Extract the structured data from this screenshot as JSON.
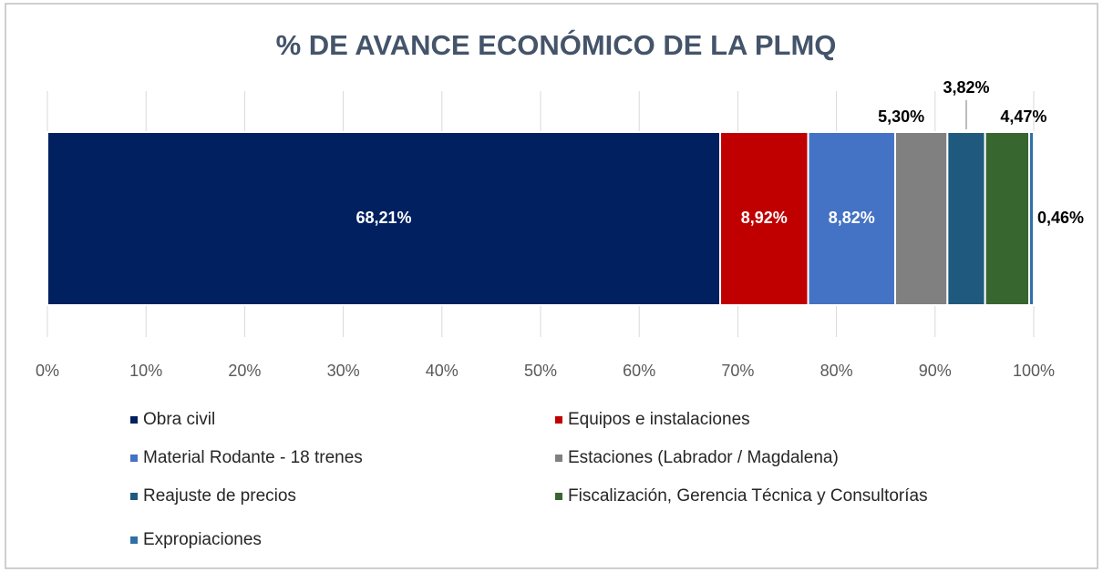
{
  "chart_data": {
    "type": "stacked_bar_horizontal",
    "title": "% DE AVANCE ECONÓMICO DE LA PLMQ",
    "series": [
      {
        "name": "Obra civil",
        "color": "#002060",
        "values": [
          68.21
        ],
        "value_labels": [
          "68,21%"
        ]
      },
      {
        "name": "Equipos e instalaciones",
        "color": "#c00000",
        "values": [
          8.92
        ],
        "value_labels": [
          "8,92%"
        ]
      },
      {
        "name": "Material Rodante - 18 trenes",
        "color": "#4472c4",
        "values": [
          8.82
        ],
        "value_labels": [
          "8,82%"
        ]
      },
      {
        "name": "Estaciones (Labrador / Magdalena)",
        "color": "#808080",
        "values": [
          5.3
        ],
        "value_labels": [
          "5,30%"
        ]
      },
      {
        "name": "Reajuste de precios",
        "color": "#1f5a7e",
        "values": [
          3.82
        ],
        "value_labels": [
          "3,82%"
        ]
      },
      {
        "name": "Fiscalización, Gerencia Técnica y Consultorías",
        "color": "#38662f",
        "values": [
          4.47
        ],
        "value_labels": [
          "4,47%"
        ]
      },
      {
        "name": "Expropiaciones",
        "color": "#2e6fa7",
        "values": [
          0.46
        ],
        "value_labels": [
          "0,46%"
        ]
      }
    ],
    "xlim": [
      0,
      100
    ],
    "xticks": [
      {
        "value": 0,
        "label": "0%"
      },
      {
        "value": 10,
        "label": "10%"
      },
      {
        "value": 20,
        "label": "20%"
      },
      {
        "value": 30,
        "label": "30%"
      },
      {
        "value": 40,
        "label": "40%"
      },
      {
        "value": 50,
        "label": "50%"
      },
      {
        "value": 60,
        "label": "60%"
      },
      {
        "value": 70,
        "label": "70%"
      },
      {
        "value": 80,
        "label": "80%"
      },
      {
        "value": 90,
        "label": "90%"
      },
      {
        "value": 100,
        "label": "100%"
      }
    ],
    "grid": true,
    "legend": "bottom"
  }
}
